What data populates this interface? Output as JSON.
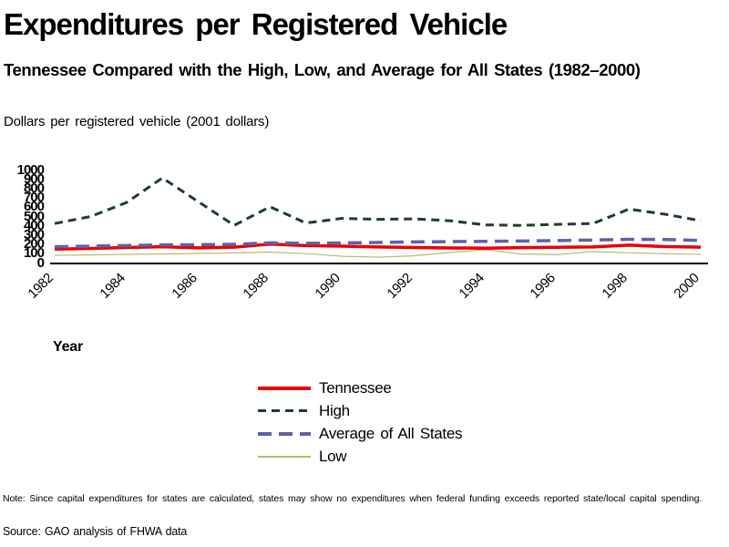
{
  "header": {
    "title": "Expenditures per Registered Vehicle",
    "subtitle": "Tennessee Compared with the High, Low, and Average for All States (1982–2000)",
    "units_label": "Dollars per registered vehicle (2001 dollars)"
  },
  "axis": {
    "x_title": "Year"
  },
  "footer": {
    "note": "Note: Since capital expenditures for states are calculated, states may show no expenditures when federal funding exceeds reported state/local capital spending.",
    "source": "Source: GAO analysis of FHWA data"
  },
  "chart_data": {
    "type": "line",
    "title": "Expenditures per Registered Vehicle",
    "subtitle": "Tennessee Compared with the High, Low, and Average for All States (1982–2000)",
    "ylabel": "Dollars per registered vehicle (2001 dollars)",
    "xlabel": "Year",
    "ylim": [
      0,
      1000
    ],
    "yticks": [
      0,
      100,
      200,
      300,
      400,
      500,
      600,
      700,
      800,
      900,
      1000
    ],
    "xticks": [
      1982,
      1984,
      1986,
      1988,
      1990,
      1992,
      1994,
      1996,
      1998,
      2000
    ],
    "grid": false,
    "legend_position": "bottom-center",
    "x": [
      1982,
      1983,
      1984,
      1985,
      1986,
      1987,
      1988,
      1989,
      1990,
      1991,
      1992,
      1993,
      1994,
      1995,
      1996,
      1997,
      1998,
      1999,
      2000
    ],
    "series": [
      {
        "name": "Tennessee",
        "color": "#ee0000",
        "style": "solid",
        "width": 3.5,
        "z": 1,
        "values": [
          145,
          152,
          162,
          170,
          158,
          166,
          198,
          183,
          177,
          168,
          162,
          157,
          155,
          160,
          164,
          168,
          188,
          172,
          165
        ]
      },
      {
        "name": "High",
        "color": "#1e3d2f",
        "style": "dash",
        "width": 3,
        "z": 3,
        "values": [
          420,
          495,
          645,
          910,
          655,
          400,
          600,
          425,
          475,
          465,
          470,
          450,
          405,
          400,
          410,
          420,
          575,
          520,
          450
        ]
      },
      {
        "name": "Average of All States",
        "color": "#5e61a9",
        "style": "long-dash",
        "width": 3.5,
        "z": 2,
        "values": [
          170,
          176,
          183,
          190,
          192,
          196,
          212,
          207,
          211,
          216,
          222,
          225,
          228,
          232,
          236,
          242,
          250,
          248,
          238
        ]
      },
      {
        "name": "Low",
        "color": "#b4bd6a",
        "style": "solid",
        "width": 1.2,
        "z": 0,
        "values": [
          78,
          82,
          88,
          92,
          98,
          104,
          113,
          96,
          68,
          58,
          72,
          108,
          138,
          92,
          86,
          118,
          106,
          94,
          88
        ]
      }
    ]
  }
}
